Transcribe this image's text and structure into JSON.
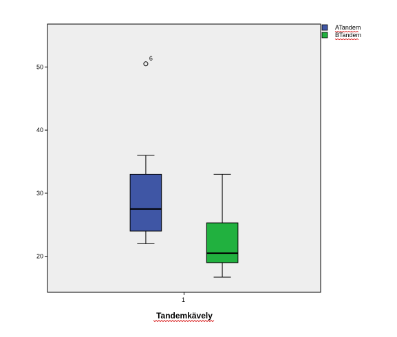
{
  "chart_data": {
    "type": "boxplot",
    "xlabel": "Tandemkävely",
    "categories": [
      "1"
    ],
    "ylim": [
      14.3,
      56.8
    ],
    "yticks": [
      20,
      30,
      40,
      50
    ],
    "grid": false,
    "legend_position": "top-right-outside",
    "plot_background": "#eeeeee",
    "series": [
      {
        "name": "ATandem",
        "color": "#3f56a5",
        "min": 22.0,
        "q1": 24.0,
        "median": 27.5,
        "q3": 33.0,
        "max": 36.0,
        "outliers": [
          {
            "value": 50.5,
            "label": "6"
          }
        ]
      },
      {
        "name": "BTandem",
        "color": "#21b13f",
        "min": 16.7,
        "q1": 19.0,
        "median": 20.5,
        "q3": 25.3,
        "max": 33.0,
        "outliers": []
      }
    ]
  }
}
